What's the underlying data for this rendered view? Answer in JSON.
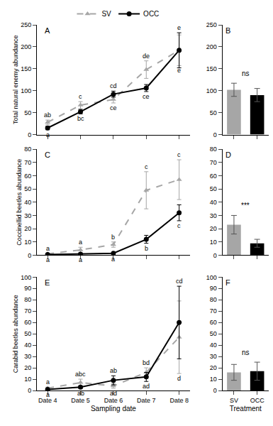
{
  "chart_data": [
    {
      "type": "line",
      "panel": "A",
      "y_label": "Total natural enemy abundance",
      "categories": [
        "Date 4",
        "Date 5",
        "Date 6",
        "Date 7",
        "Date 8"
      ],
      "ylim": [
        0,
        250
      ],
      "yticks": [
        0,
        50,
        100,
        150,
        200,
        250
      ],
      "grid": false,
      "tick_labels": "y",
      "legend": "top",
      "series": [
        {
          "name": "SV",
          "color": "#a6a6a6",
          "marker": "triangle-up",
          "line_style": "dashed",
          "values": [
            28,
            67,
            80,
            148,
            192
          ],
          "errors": [
            5,
            8,
            8,
            20,
            35
          ],
          "letters": [
            "ab",
            "c",
            "ce",
            "de",
            "e"
          ]
        },
        {
          "name": "OCC",
          "color": "#000000",
          "marker": "circle",
          "line_style": "solid",
          "values": [
            15,
            52,
            92,
            106,
            192
          ],
          "errors": [
            4,
            5,
            7,
            8,
            40
          ],
          "letters": [
            "a",
            "bc",
            "cd",
            "ce",
            "e"
          ]
        }
      ]
    },
    {
      "type": "bar",
      "panel": "B",
      "annotation": "ns",
      "categories": [
        "SV",
        "OCC"
      ],
      "values": [
        102,
        90
      ],
      "errors": [
        15,
        15
      ],
      "colors": [
        "#a6a6a6",
        "#000000"
      ],
      "ylim": [
        0,
        250
      ],
      "yticks": [
        0,
        50,
        100,
        150,
        200,
        250
      ],
      "grid": false,
      "tick_labels": "y"
    },
    {
      "type": "line",
      "panel": "C",
      "y_label": "Coccinellid beetles abundance",
      "categories": [
        "Date 4",
        "Date 5",
        "Date 6",
        "Date 7",
        "Date 8"
      ],
      "ylim": [
        0,
        80
      ],
      "yticks": [
        0,
        10,
        20,
        30,
        40,
        50,
        60,
        70,
        80
      ],
      "grid": false,
      "tick_labels": "y",
      "series": [
        {
          "name": "SV",
          "color": "#a6a6a6",
          "marker": "triangle-up",
          "line_style": "dashed",
          "values": [
            1,
            4,
            8,
            49,
            57
          ],
          "errors": [
            0.5,
            2,
            2,
            14,
            15
          ],
          "letters": [
            "a",
            "a",
            "b",
            "c",
            "c"
          ]
        },
        {
          "name": "OCC",
          "color": "#000000",
          "marker": "circle",
          "line_style": "solid",
          "values": [
            0.5,
            0.8,
            1.5,
            12,
            32
          ],
          "errors": [
            0.3,
            0.5,
            0.5,
            3,
            6
          ],
          "letters": [
            "a",
            "a",
            "a",
            "b",
            "c"
          ]
        }
      ]
    },
    {
      "type": "bar",
      "panel": "D",
      "annotation": "***",
      "categories": [
        "SV",
        "OCC"
      ],
      "values": [
        23,
        9
      ],
      "errors": [
        7,
        3
      ],
      "colors": [
        "#a6a6a6",
        "#000000"
      ],
      "ylim": [
        0,
        80
      ],
      "yticks": [
        0,
        10,
        20,
        30,
        40,
        50,
        60,
        70,
        80
      ],
      "grid": false,
      "tick_labels": "y"
    },
    {
      "type": "line",
      "panel": "E",
      "y_label": "Carabid beetles abundance",
      "x_label": "Sampling date",
      "categories": [
        "Date 4",
        "Date 5",
        "Date 6",
        "Date 7",
        "Date 8"
      ],
      "ylim": [
        0,
        100
      ],
      "yticks": [
        0,
        10,
        20,
        30,
        40,
        50,
        60,
        70,
        80,
        90,
        100
      ],
      "grid": false,
      "series": [
        {
          "name": "SV",
          "color": "#a6a6a6",
          "marker": "triangle-up",
          "line_style": "dashed",
          "values": [
            2,
            7,
            4,
            16,
            47
          ],
          "errors": [
            1,
            3,
            2,
            4,
            32
          ],
          "letters": [
            "a",
            "abc",
            "ad",
            "bd",
            "d"
          ]
        },
        {
          "name": "OCC",
          "color": "#000000",
          "marker": "circle",
          "line_style": "solid",
          "values": [
            1,
            3,
            9,
            12,
            60
          ],
          "errors": [
            0.5,
            1,
            4,
            4,
            32
          ],
          "letters": [
            "a",
            "ab",
            "ab",
            "ad",
            "cd"
          ]
        }
      ]
    },
    {
      "type": "bar",
      "panel": "F",
      "annotation": "ns",
      "x_label": "Treatment",
      "categories": [
        "SV",
        "OCC"
      ],
      "values": [
        16,
        17
      ],
      "errors": [
        7,
        8
      ],
      "colors": [
        "#a6a6a6",
        "#000000"
      ],
      "ylim": [
        0,
        100
      ],
      "yticks": [
        0,
        10,
        20,
        30,
        40,
        50,
        60,
        70,
        80,
        90,
        100
      ],
      "grid": false
    }
  ]
}
